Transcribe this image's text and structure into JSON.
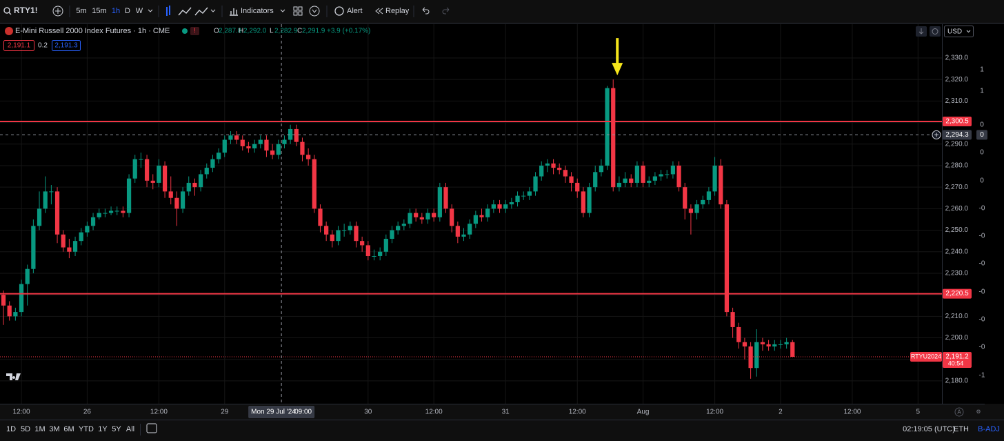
{
  "toolbar": {
    "symbol": "RTY1!",
    "intervals": [
      "5m",
      "15m",
      "1h",
      "D",
      "W"
    ],
    "indicators": "Indicators",
    "alert": "Alert",
    "replay": "Replay"
  },
  "legend": {
    "title": "E-Mini Russell 2000 Index Futures · 1h · CME",
    "ohlc": [
      {
        "label": "O",
        "value": "2,287.8"
      },
      {
        "label": "H",
        "value": "2,292.0"
      },
      {
        "label": "L",
        "value": "2,282.9"
      },
      {
        "label": "C",
        "value": "2,291.9"
      }
    ],
    "change": "+3.9 (+0.17%)",
    "bid": "2,191.1",
    "spread": "0.2",
    "ask": "2,191.3"
  },
  "currency": "USD",
  "chart_data": {
    "type": "candlestick",
    "up_color": "#089981",
    "down_color": "#f23645",
    "open": [
      2220,
      2215,
      2210,
      2212,
      2225,
      2232,
      2252,
      2260,
      2268,
      2268,
      2248,
      2242,
      2240,
      2245,
      2249,
      2252,
      2256,
      2258,
      2258,
      2259,
      2259,
      2258,
      2274,
      2283,
      2283,
      2273,
      2272,
      2280,
      2268,
      2265,
      2260,
      2268,
      2272,
      2270,
      2276,
      2279,
      2283,
      2286,
      2292,
      2294,
      2292,
      2289,
      2288,
      2290,
      2292,
      2287,
      2285,
      2290,
      2292,
      2297,
      2291,
      2285,
      2283,
      2260,
      2252,
      2248,
      2245,
      2250,
      2250,
      2252,
      2245,
      2243,
      2238,
      2238,
      2240,
      2246,
      2250,
      2252,
      2253,
      2258,
      2256,
      2255,
      2258,
      2256,
      2270,
      2260,
      2252,
      2247,
      2248,
      2253,
      2257,
      2256,
      2260,
      2262,
      2260,
      2262,
      2263,
      2266,
      2266,
      2268,
      2275,
      2280,
      2281,
      2279,
      2278,
      2275,
      2272,
      2268,
      2258,
      2270,
      2277,
      2280,
      2316,
      2270,
      2272,
      2274,
      2272,
      2280,
      2272,
      2273,
      2275,
      2276,
      2276,
      2280,
      2270,
      2260,
      2258,
      2262,
      2264,
      2268,
      2280,
      2262,
      2212,
      2205,
      2198,
      2196,
      2186,
      2198,
      2197,
      2196,
      2197,
      2197,
      2198
    ],
    "high": [
      2222,
      2217,
      2214,
      2227,
      2234,
      2255,
      2268,
      2275,
      2271,
      2270,
      2250,
      2246,
      2247,
      2251,
      2254,
      2258,
      2260,
      2260,
      2261,
      2261,
      2261,
      2276,
      2285,
      2286,
      2285,
      2276,
      2283,
      2282,
      2275,
      2268,
      2270,
      2275,
      2274,
      2278,
      2281,
      2285,
      2288,
      2294,
      2296,
      2296,
      2294,
      2291,
      2292,
      2294,
      2294,
      2290,
      2292,
      2294,
      2299,
      2299,
      2293,
      2288,
      2285,
      2262,
      2254,
      2250,
      2252,
      2253,
      2254,
      2254,
      2247,
      2245,
      2241,
      2242,
      2248,
      2252,
      2254,
      2255,
      2260,
      2260,
      2258,
      2260,
      2260,
      2272,
      2272,
      2262,
      2254,
      2251,
      2255,
      2259,
      2260,
      2262,
      2264,
      2264,
      2264,
      2265,
      2268,
      2268,
      2270,
      2277,
      2282,
      2283,
      2283,
      2281,
      2280,
      2277,
      2274,
      2270,
      2272,
      2280,
      2283,
      2317,
      2320,
      2275,
      2277,
      2276,
      2282,
      2282,
      2275,
      2277,
      2278,
      2278,
      2282,
      2282,
      2272,
      2262,
      2264,
      2266,
      2270,
      2284,
      2283,
      2264,
      2214,
      2207,
      2200,
      2198,
      2204,
      2200,
      2199,
      2199,
      2199,
      2200,
      2199
    ],
    "low": [
      2206,
      2208,
      2208,
      2210,
      2215,
      2230,
      2250,
      2258,
      2262,
      2244,
      2240,
      2237,
      2238,
      2243,
      2247,
      2250,
      2255,
      2256,
      2257,
      2257,
      2256,
      2256,
      2272,
      2279,
      2270,
      2269,
      2270,
      2265,
      2262,
      2252,
      2258,
      2266,
      2266,
      2268,
      2274,
      2277,
      2281,
      2284,
      2290,
      2290,
      2287,
      2286,
      2286,
      2288,
      2284,
      2283,
      2283,
      2288,
      2290,
      2289,
      2282,
      2280,
      2258,
      2249,
      2245,
      2242,
      2243,
      2247,
      2248,
      2242,
      2240,
      2236,
      2236,
      2236,
      2238,
      2244,
      2248,
      2250,
      2251,
      2254,
      2253,
      2253,
      2254,
      2254,
      2258,
      2249,
      2244,
      2245,
      2246,
      2251,
      2254,
      2254,
      2258,
      2258,
      2258,
      2260,
      2261,
      2264,
      2264,
      2266,
      2273,
      2277,
      2276,
      2276,
      2272,
      2268,
      2265,
      2256,
      2256,
      2268,
      2275,
      2278,
      2268,
      2268,
      2270,
      2270,
      2270,
      2270,
      2270,
      2271,
      2273,
      2274,
      2274,
      2268,
      2255,
      2248,
      2255,
      2260,
      2262,
      2266,
      2260,
      2210,
      2200,
      2195,
      2190,
      2181,
      2182,
      2194,
      2194,
      2194,
      2195,
      2195,
      2191
    ],
    "close": [
      2215,
      2210,
      2212,
      2225,
      2232,
      2252,
      2260,
      2268,
      2268,
      2248,
      2242,
      2240,
      2245,
      2249,
      2252,
      2256,
      2258,
      2258,
      2259,
      2259,
      2258,
      2274,
      2283,
      2283,
      2273,
      2272,
      2280,
      2268,
      2265,
      2260,
      2268,
      2272,
      2270,
      2276,
      2279,
      2283,
      2286,
      2292,
      2294,
      2292,
      2289,
      2288,
      2290,
      2292,
      2287,
      2285,
      2290,
      2292,
      2297,
      2291,
      2285,
      2283,
      2260,
      2252,
      2248,
      2245,
      2250,
      2250,
      2252,
      2245,
      2243,
      2238,
      2238,
      2240,
      2246,
      2250,
      2252,
      2253,
      2258,
      2256,
      2255,
      2258,
      2256,
      2270,
      2260,
      2252,
      2247,
      2248,
      2253,
      2257,
      2256,
      2260,
      2262,
      2260,
      2262,
      2263,
      2266,
      2266,
      2268,
      2275,
      2280,
      2281,
      2279,
      2278,
      2275,
      2272,
      2268,
      2258,
      2270,
      2277,
      2280,
      2316,
      2270,
      2272,
      2274,
      2272,
      2280,
      2272,
      2273,
      2275,
      2276,
      2276,
      2280,
      2270,
      2260,
      2258,
      2262,
      2264,
      2268,
      2280,
      2262,
      2212,
      2205,
      2198,
      2196,
      2186,
      2198,
      2197,
      2196,
      2197,
      2197,
      2198,
      2191.2
    ],
    "xlim": [
      -0.58,
      157
    ],
    "xticks": [
      {
        "value": 3,
        "label": "12:00"
      },
      {
        "value": 14,
        "label": "26"
      },
      {
        "value": 26,
        "label": "12:00"
      },
      {
        "value": 37,
        "label": "29"
      },
      {
        "value": 61,
        "label": "30"
      },
      {
        "value": 72,
        "label": "12:00"
      },
      {
        "value": 84,
        "label": "31"
      },
      {
        "value": 96,
        "label": "12:00"
      },
      {
        "value": 107,
        "label": "Aug"
      },
      {
        "value": 119,
        "label": "12:00"
      },
      {
        "value": 130,
        "label": "2"
      },
      {
        "value": 142,
        "label": "12:00"
      },
      {
        "value": 153,
        "label": "5"
      }
    ],
    "ylim": [
      2169.4,
      2345.7
    ],
    "yticks": [
      {
        "value": 2180,
        "label": "2,180.0"
      },
      {
        "value": 2190,
        "label": "2,190.0"
      },
      {
        "value": 2200,
        "label": "2,200.0"
      },
      {
        "value": 2210,
        "label": "2,210.0"
      },
      {
        "value": 2220,
        "label": "2,220.0"
      },
      {
        "value": 2230,
        "label": "2,230.0"
      },
      {
        "value": 2240,
        "label": "2,240.0"
      },
      {
        "value": 2250,
        "label": "2,250.0"
      },
      {
        "value": 2260,
        "label": "2,260.0"
      },
      {
        "value": 2270,
        "label": "2,270.0"
      },
      {
        "value": 2280,
        "label": "2,280.0"
      },
      {
        "value": 2290,
        "label": "2,290.0"
      },
      {
        "value": 2300,
        "label": "2,300.0"
      },
      {
        "value": 2310,
        "label": "2,310.0"
      },
      {
        "value": 2320,
        "label": "2,320.0"
      },
      {
        "value": 2330,
        "label": "2,330.0"
      }
    ],
    "grid": true,
    "hlines": [
      {
        "value": 2300.5,
        "label": "2,300.5",
        "color": "#f23645"
      },
      {
        "value": 2220.5,
        "label": "2,220.5",
        "color": "#f23645"
      }
    ],
    "crosshair": {
      "x": 46.5,
      "y": 2294.3,
      "x_label": "Mon 29 Jul '24",
      "x_time": "09:00",
      "y_label": "2,294.3",
      "side_value": "0"
    },
    "last_price": {
      "value": 2191.2,
      "label": "2,191.2",
      "symbol": "RTYU2024",
      "countdown": "40:54"
    },
    "arrow": {
      "at": 102,
      "color": "#f5e51b"
    },
    "side_scale": [
      "1",
      "1",
      "0",
      "0",
      "0",
      "-0",
      "-0",
      "-0",
      "-0",
      "-0",
      "-0",
      "-1"
    ]
  },
  "footer": {
    "ranges": [
      "1D",
      "5D",
      "1M",
      "3M",
      "6M",
      "YTD",
      "1Y",
      "5Y",
      "All"
    ],
    "clock": "02:19:05 (UTC)",
    "session": "ETH",
    "adjust": "B-ADJ"
  }
}
